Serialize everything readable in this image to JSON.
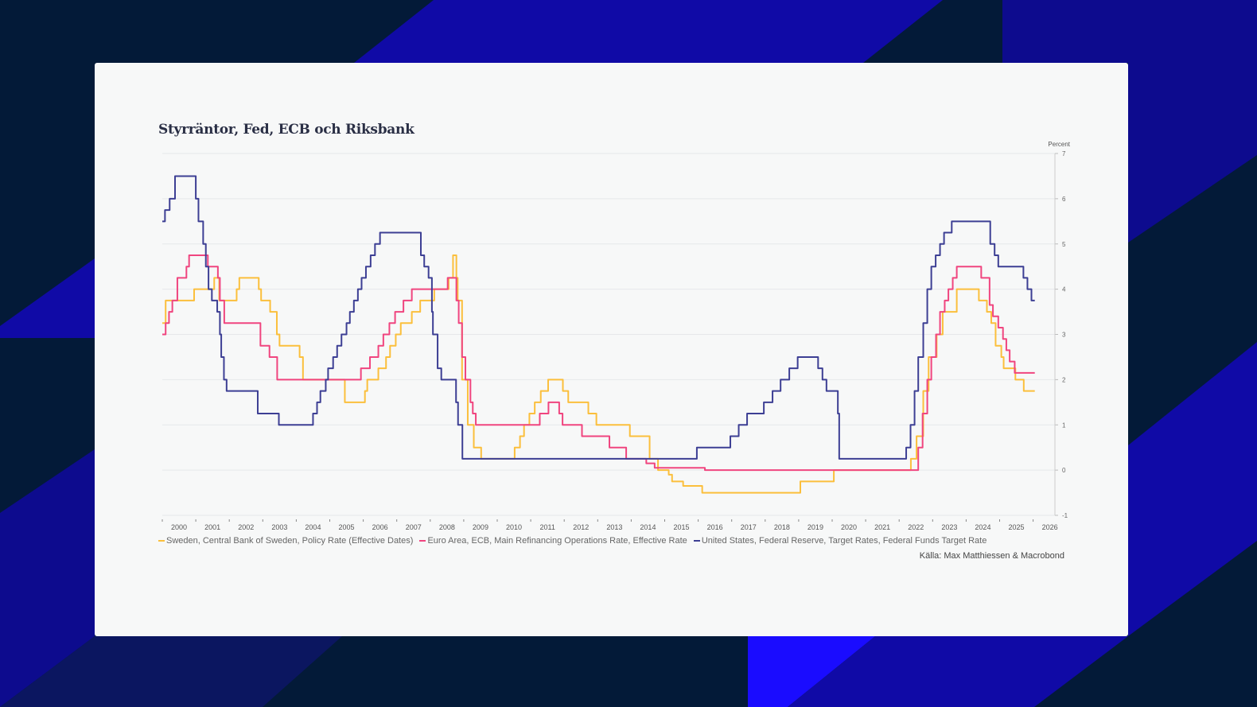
{
  "colors": {
    "background": "#031a38",
    "accent_blue": "#100aa6",
    "card": "#f7f8f8",
    "sweden": "#fbbf3c",
    "ecb": "#f0457f",
    "fed": "#3d3f94"
  },
  "chart_data": {
    "type": "line",
    "title": "Styrräntor, Fed, ECB och Riksbank",
    "ylabel": "Percent",
    "ylim": [
      -1,
      7
    ],
    "yticks": [
      -1,
      0,
      1,
      2,
      3,
      4,
      5,
      6,
      7
    ],
    "xlim": [
      2000,
      2026.5
    ],
    "xticks": [
      "2000",
      "2001",
      "2002",
      "2003",
      "2004",
      "2005",
      "2006",
      "2007",
      "2008",
      "2009",
      "2010",
      "2011",
      "2012",
      "2013",
      "2014",
      "2015",
      "2016",
      "2017",
      "2018",
      "2019",
      "2020",
      "2021",
      "2022",
      "2023",
      "2024",
      "2025",
      "2026"
    ],
    "grid": true,
    "legend_position": "bottom",
    "source": "Källa: Max Matthiessen & Macrobond",
    "end": 2026.05,
    "series": [
      {
        "key": "sweden",
        "name": "Sweden, Central Bank of Sweden, Policy Rate (Effective Dates)",
        "step": [
          [
            2000.0,
            3.25
          ],
          [
            2000.1,
            3.75
          ],
          [
            2000.95,
            4.0
          ],
          [
            2001.55,
            4.25
          ],
          [
            2001.7,
            3.75
          ],
          [
            2002.22,
            4.0
          ],
          [
            2002.3,
            4.25
          ],
          [
            2002.88,
            4.0
          ],
          [
            2002.95,
            3.75
          ],
          [
            2003.22,
            3.5
          ],
          [
            2003.42,
            3.0
          ],
          [
            2003.5,
            2.75
          ],
          [
            2004.1,
            2.5
          ],
          [
            2004.2,
            2.0
          ],
          [
            2005.45,
            1.5
          ],
          [
            2006.05,
            1.75
          ],
          [
            2006.12,
            2.0
          ],
          [
            2006.45,
            2.25
          ],
          [
            2006.68,
            2.5
          ],
          [
            2006.8,
            2.75
          ],
          [
            2006.97,
            3.0
          ],
          [
            2007.12,
            3.25
          ],
          [
            2007.45,
            3.5
          ],
          [
            2007.7,
            3.75
          ],
          [
            2008.12,
            4.0
          ],
          [
            2008.55,
            4.25
          ],
          [
            2008.68,
            4.75
          ],
          [
            2008.78,
            4.25
          ],
          [
            2008.82,
            3.75
          ],
          [
            2008.95,
            2.0
          ],
          [
            2009.12,
            1.0
          ],
          [
            2009.3,
            0.5
          ],
          [
            2009.52,
            0.25
          ],
          [
            2010.52,
            0.5
          ],
          [
            2010.68,
            0.75
          ],
          [
            2010.8,
            1.0
          ],
          [
            2010.96,
            1.25
          ],
          [
            2011.12,
            1.5
          ],
          [
            2011.3,
            1.75
          ],
          [
            2011.52,
            2.0
          ],
          [
            2011.96,
            1.75
          ],
          [
            2012.12,
            1.5
          ],
          [
            2012.72,
            1.25
          ],
          [
            2012.96,
            1.0
          ],
          [
            2013.96,
            0.75
          ],
          [
            2014.55,
            0.25
          ],
          [
            2014.8,
            0.0
          ],
          [
            2015.12,
            -0.1
          ],
          [
            2015.22,
            -0.25
          ],
          [
            2015.55,
            -0.35
          ],
          [
            2016.12,
            -0.5
          ],
          [
            2019.05,
            -0.25
          ],
          [
            2020.05,
            0.0
          ],
          [
            2022.35,
            0.25
          ],
          [
            2022.52,
            0.75
          ],
          [
            2022.72,
            1.75
          ],
          [
            2022.88,
            2.5
          ],
          [
            2023.12,
            3.0
          ],
          [
            2023.3,
            3.5
          ],
          [
            2023.72,
            4.0
          ],
          [
            2024.38,
            3.75
          ],
          [
            2024.62,
            3.5
          ],
          [
            2024.75,
            3.25
          ],
          [
            2024.88,
            2.75
          ],
          [
            2025.05,
            2.5
          ],
          [
            2025.12,
            2.25
          ],
          [
            2025.47,
            2.0
          ],
          [
            2025.72,
            1.75
          ]
        ]
      },
      {
        "key": "ecb",
        "name": "Euro Area, ECB, Main Refinancing Operations Rate, Effective Rate",
        "step": [
          [
            2000.0,
            3.0
          ],
          [
            2000.1,
            3.25
          ],
          [
            2000.2,
            3.5
          ],
          [
            2000.3,
            3.75
          ],
          [
            2000.45,
            4.25
          ],
          [
            2000.72,
            4.5
          ],
          [
            2000.8,
            4.75
          ],
          [
            2001.36,
            4.5
          ],
          [
            2001.66,
            4.25
          ],
          [
            2001.72,
            3.75
          ],
          [
            2001.85,
            3.25
          ],
          [
            2002.93,
            2.75
          ],
          [
            2003.2,
            2.5
          ],
          [
            2003.43,
            2.0
          ],
          [
            2005.93,
            2.25
          ],
          [
            2006.2,
            2.5
          ],
          [
            2006.45,
            2.75
          ],
          [
            2006.6,
            3.0
          ],
          [
            2006.78,
            3.25
          ],
          [
            2006.95,
            3.5
          ],
          [
            2007.2,
            3.75
          ],
          [
            2007.45,
            4.0
          ],
          [
            2008.52,
            4.25
          ],
          [
            2008.78,
            3.75
          ],
          [
            2008.85,
            3.25
          ],
          [
            2008.95,
            2.5
          ],
          [
            2009.05,
            2.0
          ],
          [
            2009.2,
            1.5
          ],
          [
            2009.27,
            1.25
          ],
          [
            2009.36,
            1.0
          ],
          [
            2011.27,
            1.25
          ],
          [
            2011.53,
            1.5
          ],
          [
            2011.85,
            1.25
          ],
          [
            2011.95,
            1.0
          ],
          [
            2012.53,
            0.75
          ],
          [
            2013.35,
            0.5
          ],
          [
            2013.85,
            0.25
          ],
          [
            2014.45,
            0.15
          ],
          [
            2014.7,
            0.05
          ],
          [
            2016.2,
            0.0
          ],
          [
            2022.57,
            0.5
          ],
          [
            2022.7,
            1.25
          ],
          [
            2022.84,
            2.0
          ],
          [
            2022.96,
            2.5
          ],
          [
            2023.1,
            3.0
          ],
          [
            2023.22,
            3.5
          ],
          [
            2023.36,
            3.75
          ],
          [
            2023.47,
            4.0
          ],
          [
            2023.6,
            4.25
          ],
          [
            2023.72,
            4.5
          ],
          [
            2024.45,
            4.25
          ],
          [
            2024.7,
            3.65
          ],
          [
            2024.8,
            3.4
          ],
          [
            2024.96,
            3.15
          ],
          [
            2025.1,
            2.9
          ],
          [
            2025.2,
            2.65
          ],
          [
            2025.3,
            2.4
          ],
          [
            2025.45,
            2.15
          ]
        ]
      },
      {
        "key": "fed",
        "name": "United States, Federal Reserve, Target Rates, Federal Funds Target Rate",
        "step": [
          [
            2000.0,
            5.5
          ],
          [
            2000.08,
            5.75
          ],
          [
            2000.22,
            6.0
          ],
          [
            2000.38,
            6.5
          ],
          [
            2001.0,
            6.0
          ],
          [
            2001.08,
            5.5
          ],
          [
            2001.22,
            5.0
          ],
          [
            2001.3,
            4.5
          ],
          [
            2001.38,
            4.0
          ],
          [
            2001.48,
            3.75
          ],
          [
            2001.64,
            3.5
          ],
          [
            2001.72,
            3.0
          ],
          [
            2001.76,
            2.5
          ],
          [
            2001.84,
            2.0
          ],
          [
            2001.92,
            1.75
          ],
          [
            2002.85,
            1.25
          ],
          [
            2003.48,
            1.0
          ],
          [
            2004.5,
            1.25
          ],
          [
            2004.62,
            1.5
          ],
          [
            2004.72,
            1.75
          ],
          [
            2004.88,
            2.0
          ],
          [
            2004.95,
            2.25
          ],
          [
            2005.1,
            2.5
          ],
          [
            2005.22,
            2.75
          ],
          [
            2005.35,
            3.0
          ],
          [
            2005.5,
            3.25
          ],
          [
            2005.6,
            3.5
          ],
          [
            2005.72,
            3.75
          ],
          [
            2005.84,
            4.0
          ],
          [
            2005.95,
            4.25
          ],
          [
            2006.08,
            4.5
          ],
          [
            2006.22,
            4.75
          ],
          [
            2006.35,
            5.0
          ],
          [
            2006.5,
            5.25
          ],
          [
            2007.72,
            4.75
          ],
          [
            2007.82,
            4.5
          ],
          [
            2007.95,
            4.25
          ],
          [
            2008.05,
            3.5
          ],
          [
            2008.08,
            3.0
          ],
          [
            2008.22,
            2.25
          ],
          [
            2008.33,
            2.0
          ],
          [
            2008.77,
            1.5
          ],
          [
            2008.83,
            1.0
          ],
          [
            2008.96,
            0.25
          ],
          [
            2015.96,
            0.5
          ],
          [
            2016.96,
            0.75
          ],
          [
            2017.21,
            1.0
          ],
          [
            2017.46,
            1.25
          ],
          [
            2017.96,
            1.5
          ],
          [
            2018.22,
            1.75
          ],
          [
            2018.46,
            2.0
          ],
          [
            2018.72,
            2.25
          ],
          [
            2018.97,
            2.5
          ],
          [
            2019.58,
            2.25
          ],
          [
            2019.71,
            2.0
          ],
          [
            2019.83,
            1.75
          ],
          [
            2020.17,
            1.25
          ],
          [
            2020.21,
            0.25
          ],
          [
            2022.21,
            0.5
          ],
          [
            2022.34,
            1.0
          ],
          [
            2022.46,
            1.75
          ],
          [
            2022.57,
            2.5
          ],
          [
            2022.72,
            3.25
          ],
          [
            2022.84,
            4.0
          ],
          [
            2022.96,
            4.5
          ],
          [
            2023.09,
            4.75
          ],
          [
            2023.22,
            5.0
          ],
          [
            2023.34,
            5.25
          ],
          [
            2023.57,
            5.5
          ],
          [
            2024.72,
            5.0
          ],
          [
            2024.85,
            4.75
          ],
          [
            2024.96,
            4.5
          ],
          [
            2025.71,
            4.25
          ],
          [
            2025.83,
            4.0
          ],
          [
            2025.95,
            3.75
          ]
        ]
      }
    ]
  }
}
